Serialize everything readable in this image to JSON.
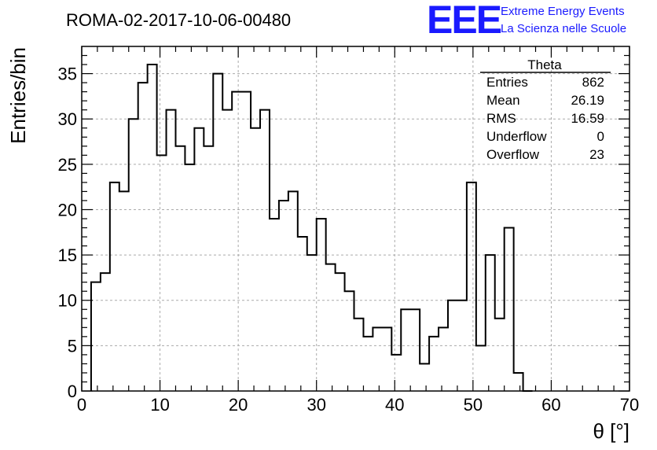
{
  "header": {
    "run_title": "ROMA-02-2017-10-06-00480",
    "logo_text": "EEE",
    "brand_line1": "Extreme Energy Events",
    "brand_line2": "La Scienza nelle Scuole",
    "brand_color": "#1a1aff"
  },
  "stats_box": {
    "title": "Theta",
    "rows": [
      {
        "label": "Entries",
        "value": "862"
      },
      {
        "label": "Mean",
        "value": "26.19"
      },
      {
        "label": "RMS",
        "value": "16.59"
      },
      {
        "label": "Underflow",
        "value": "0"
      },
      {
        "label": "Overflow",
        "value": "23"
      }
    ]
  },
  "chart_data": {
    "type": "bar",
    "histogram": true,
    "title": "ROMA-02-2017-10-06-00480",
    "xlabel": "θ [°]",
    "ylabel": "Entries/bin",
    "xlim": [
      0,
      70
    ],
    "ylim": [
      0,
      38
    ],
    "x_ticks": [
      0,
      10,
      20,
      30,
      40,
      50,
      60,
      70
    ],
    "y_ticks": [
      0,
      5,
      10,
      15,
      20,
      25,
      30,
      35
    ],
    "bin_width": 1.2,
    "bin_edges_start": 1.2,
    "values": [
      12,
      13,
      23,
      22,
      30,
      34,
      36,
      26,
      31,
      27,
      25,
      29,
      27,
      35,
      31,
      33,
      33,
      29,
      31,
      19,
      21,
      22,
      17,
      15,
      19,
      14,
      13,
      11,
      8,
      6,
      7,
      7,
      4,
      9,
      9,
      3,
      6,
      7,
      10,
      10,
      23,
      5,
      15,
      8,
      18,
      2,
      0
    ],
    "grid": true,
    "line_color": "#000000"
  }
}
